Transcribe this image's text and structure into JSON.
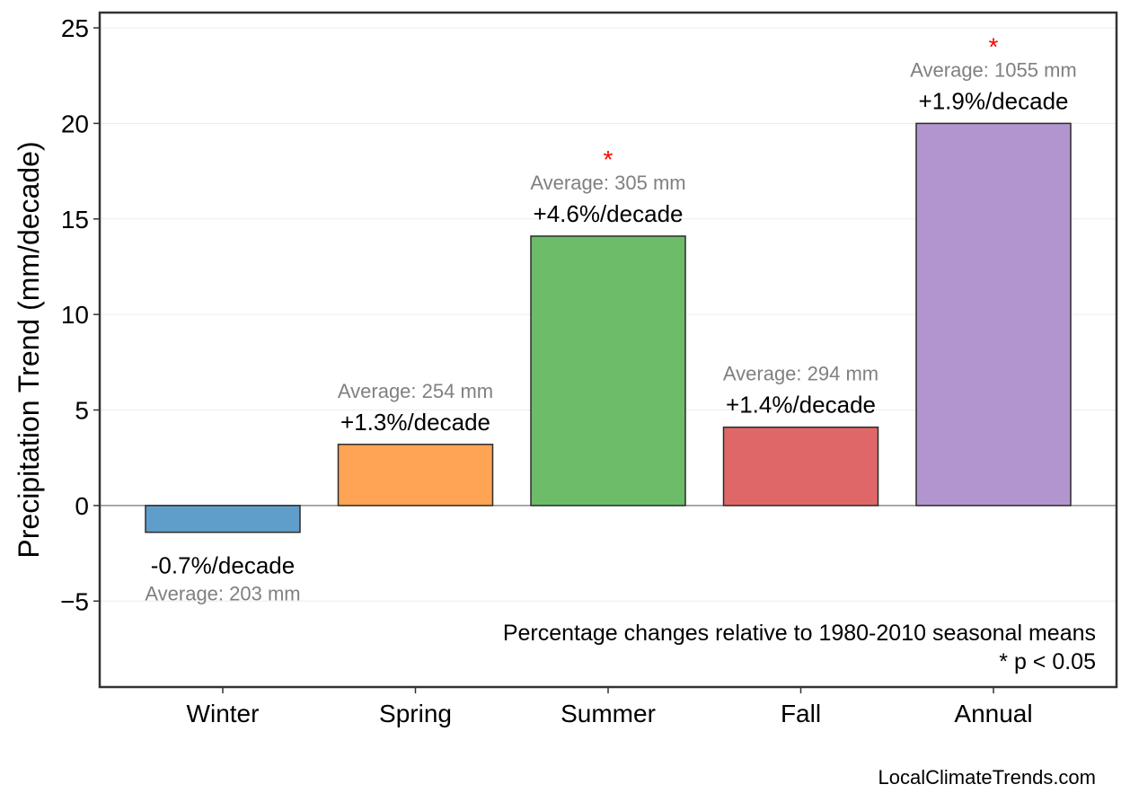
{
  "chart_data": {
    "type": "bar",
    "categories": [
      "Winter",
      "Spring",
      "Summer",
      "Fall",
      "Annual"
    ],
    "values": [
      -1.4,
      3.2,
      14.1,
      4.1,
      20.0
    ],
    "percent_labels": [
      "-0.7%/decade",
      "+1.3%/decade",
      "+4.6%/decade",
      "+1.4%/decade",
      "+1.9%/decade"
    ],
    "average_labels": [
      "Average: 203 mm",
      "Average: 254 mm",
      "Average: 305 mm",
      "Average: 294 mm",
      "Average: 1055 mm"
    ],
    "significant": [
      false,
      false,
      true,
      false,
      true
    ],
    "significance_marker": "*",
    "colors": [
      "#5f9ecb",
      "#fea454",
      "#6cbc6a",
      "#e06768",
      "#b295ce"
    ],
    "edge_color": "#2b2b2b",
    "significance_color": "#ff0000",
    "average_label_color": "#808080",
    "title": "",
    "xlabel": "",
    "ylabel": "Precipitation Trend (mm/decade)",
    "ylim": [
      -9.5,
      25.8
    ],
    "yticks": [
      -5,
      0,
      5,
      10,
      15,
      20,
      25
    ],
    "ytick_labels": [
      "−5",
      "0",
      "5",
      "10",
      "15",
      "20",
      "25"
    ],
    "grid": true,
    "zero_line": true,
    "notes": [
      "Percentage changes relative to 1980-2010 seasonal means",
      "* p < 0.05"
    ],
    "credit": "LocalClimateTrends.com"
  }
}
